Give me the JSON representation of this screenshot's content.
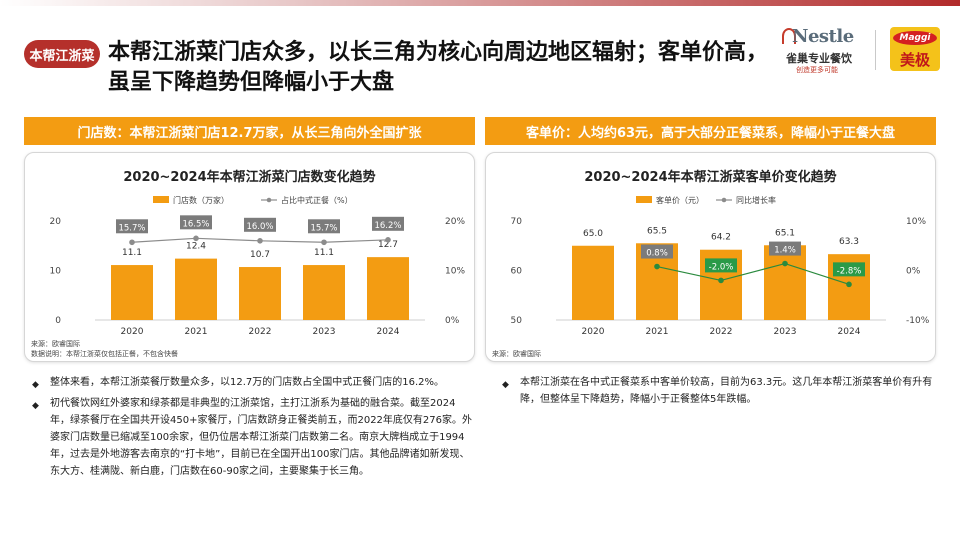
{
  "header": {
    "badge": "本帮江浙菜",
    "headline": "本帮江浙菜门店众多，以长三角为核心向周边地区辐射；客单价高，虽呈下降趋势但降幅小于大盘"
  },
  "brand": {
    "nestle_word": "Nestle",
    "nestle_cn": "雀巢专业餐饮",
    "nestle_slogan": "创造更多可能",
    "maggi_word": "Maggi",
    "maggi_cn": "美极"
  },
  "sections": {
    "left_title": "门店数：本帮江浙菜门店12.7万家，从长三角向外全国扩张",
    "right_title": "客单价：人均约63元，高于大部分正餐菜系，降幅小于正餐大盘"
  },
  "chart_data": [
    {
      "type": "bar",
      "title": "2020~2024年本帮江浙菜门店数变化趋势",
      "categories": [
        "2020",
        "2021",
        "2022",
        "2023",
        "2024"
      ],
      "series": [
        {
          "name": "门店数（万家）",
          "type": "bar",
          "axis": "left",
          "values": [
            11.1,
            12.4,
            10.7,
            11.1,
            12.7
          ],
          "labels": [
            "11.1",
            "12.4",
            "10.7",
            "11.1",
            "12.7"
          ],
          "color": "#f39c12"
        },
        {
          "name": "占比中式正餐（%）",
          "type": "line",
          "axis": "right",
          "values": [
            15.7,
            16.5,
            16.0,
            15.7,
            16.2
          ],
          "labels": [
            "15.7%",
            "16.5%",
            "16.0%",
            "15.7%",
            "16.2%"
          ],
          "color": "#8c8c8c"
        }
      ],
      "ylim": [
        0,
        20
      ],
      "y_ticks": [
        "0",
        "10",
        "20"
      ],
      "y2lim": [
        0,
        20
      ],
      "y2_ticks": [
        "0%",
        "10%",
        "20%"
      ],
      "legend_position": "top",
      "source": "来源：欧睿国际",
      "note": "数据说明：本帮江浙菜仅包括正餐，不包含快餐"
    },
    {
      "type": "bar",
      "title": "2020~2024年本帮江浙菜客单价变化趋势",
      "categories": [
        "2020",
        "2021",
        "2022",
        "2023",
        "2024"
      ],
      "series": [
        {
          "name": "客单价（元）",
          "type": "bar",
          "axis": "left",
          "values": [
            65.0,
            65.5,
            64.2,
            65.1,
            63.3
          ],
          "labels": [
            "65.0",
            "65.5",
            "64.2",
            "65.1",
            "63.3"
          ],
          "color": "#f39c12"
        },
        {
          "name": "同比增长率",
          "type": "line",
          "axis": "right",
          "values": [
            null,
            0.8,
            -2.0,
            1.4,
            -2.8
          ],
          "labels": [
            "",
            "0.8%",
            "-2.0%",
            "1.4%",
            "-2.8%"
          ],
          "color": "#2a8a3e"
        }
      ],
      "ylim": [
        50,
        70
      ],
      "y_ticks": [
        "50",
        "60",
        "70"
      ],
      "y2lim": [
        -10,
        10
      ],
      "y2_ticks": [
        "-10%",
        "0%",
        "10%"
      ],
      "legend_position": "top",
      "source": "来源：欧睿国际"
    }
  ],
  "bullets": {
    "left": [
      "整体来看，本帮江浙菜餐厅数量众多，以12.7万的门店数占全国中式正餐门店的16.2%。",
      "初代餐饮网红外婆家和绿茶都是非典型的江浙菜馆，主打江浙系为基础的融合菜。截至2024年，绿茶餐厅在全国共开设450+家餐厅，门店数跻身正餐类前五，而2022年底仅有276家。外婆家门店数量已缩减至100余家，但仍位居本帮江浙菜门店数第二名。南京大牌档成立于1994年，过去是外地游客去南京的“打卡地”，目前已在全国开出100家门店。其他品牌诸如新发现、东大方、桂满陇、新白鹿，门店数在60-90家之间，主要聚集于长三角。"
    ],
    "right": [
      "本帮江浙菜在各中式正餐菜系中客单价较高，目前为63.3元。这几年本帮江浙菜客单价有升有降，但整体呈下降趋势，降幅小于正餐整体5年跌幅。"
    ]
  }
}
